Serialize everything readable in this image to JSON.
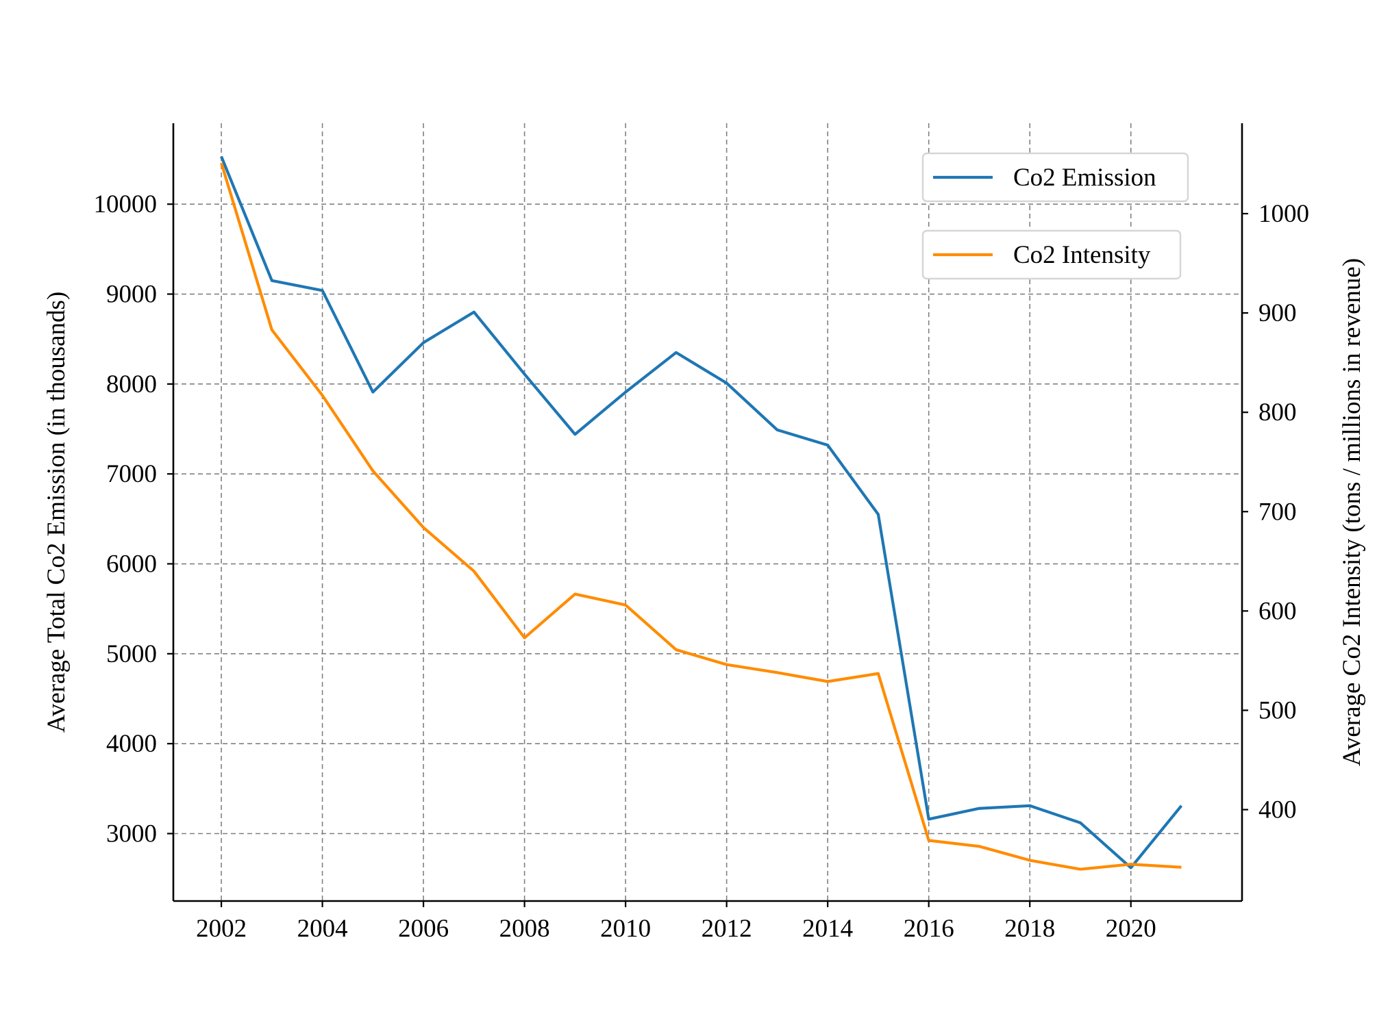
{
  "chart_data": {
    "type": "line",
    "title": "",
    "xlabel": "",
    "ylabel": "Average Total Co2 Emission (in thousands)",
    "y2label": "Average Co2 Intensity (tons / millions in revenue)",
    "xlim": [
      2001.05,
      2022.2
    ],
    "ylim": [
      2250,
      10900
    ],
    "y2lim": [
      308,
      1091
    ],
    "x_ticks": [
      2002,
      2004,
      2006,
      2008,
      2010,
      2012,
      2014,
      2016,
      2018,
      2020
    ],
    "y_ticks": [
      3000,
      4000,
      5000,
      6000,
      7000,
      8000,
      9000,
      10000
    ],
    "y2_ticks": [
      400,
      500,
      600,
      700,
      800,
      900,
      1000
    ],
    "grid": true,
    "legend_position": "top-right",
    "x": [
      2002,
      2003,
      2004,
      2005,
      2006,
      2007,
      2008,
      2009,
      2010,
      2011,
      2012,
      2013,
      2014,
      2015,
      2016,
      2017,
      2018,
      2019,
      2020,
      2021
    ],
    "series": [
      {
        "name": "Co2 Emission",
        "axis": "left",
        "color": "#1f77b4",
        "values": [
          10530,
          9150,
          9040,
          7910,
          8460,
          8800,
          8110,
          7440,
          7910,
          8350,
          8010,
          7490,
          7320,
          6550,
          3160,
          3280,
          3310,
          3120,
          2620,
          3310
        ]
      },
      {
        "name": "Co2 Intensity",
        "axis": "right",
        "color": "#ff8c00",
        "values": [
          1051,
          883,
          817,
          741,
          684,
          640,
          573,
          617,
          606,
          561,
          546,
          538,
          529,
          537,
          369,
          363,
          349,
          340,
          345,
          342
        ]
      }
    ]
  }
}
